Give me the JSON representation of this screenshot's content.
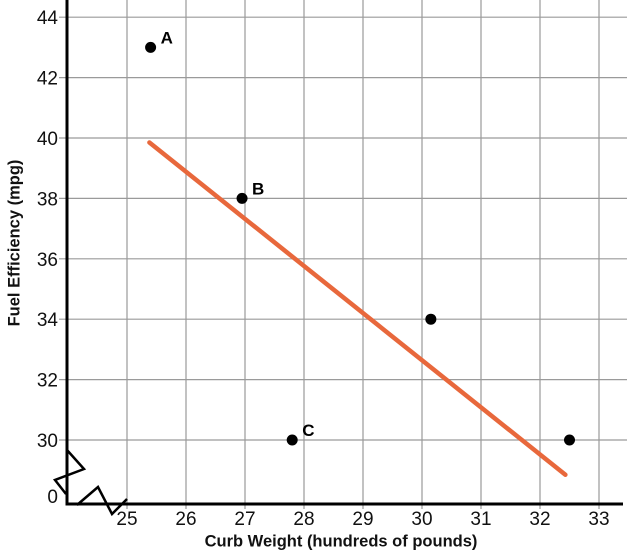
{
  "chart_data": {
    "type": "scatter",
    "title": "",
    "xlabel": "Curb Weight (hundreds of pounds)",
    "ylabel": "Fuel Efficiency (mpg)",
    "x_ticks": [
      25,
      26,
      27,
      28,
      29,
      30,
      31,
      32,
      33
    ],
    "y_ticks": [
      30,
      32,
      34,
      36,
      38,
      40,
      42,
      44
    ],
    "origin_label": "0",
    "axis_break": true,
    "xlim": [
      25,
      33
    ],
    "ylim": [
      30,
      44
    ],
    "grid": true,
    "legend": false,
    "points": [
      {
        "label": "A",
        "x": 25.4,
        "y": 43
      },
      {
        "label": "B",
        "x": 26.95,
        "y": 38
      },
      {
        "label": "C",
        "x": 27.8,
        "y": 30
      },
      {
        "label": "",
        "x": 30.15,
        "y": 34
      },
      {
        "label": "",
        "x": 32.5,
        "y": 30
      }
    ],
    "trend_line": {
      "x1": 25.38,
      "y1": 39.85,
      "x2": 32.43,
      "y2": 28.85
    },
    "colors": {
      "point": "#000000",
      "grid": "#9a9a9a",
      "axis": "#000000",
      "trend": "#E8683C",
      "text": "#111111",
      "background": "#ffffff"
    }
  }
}
